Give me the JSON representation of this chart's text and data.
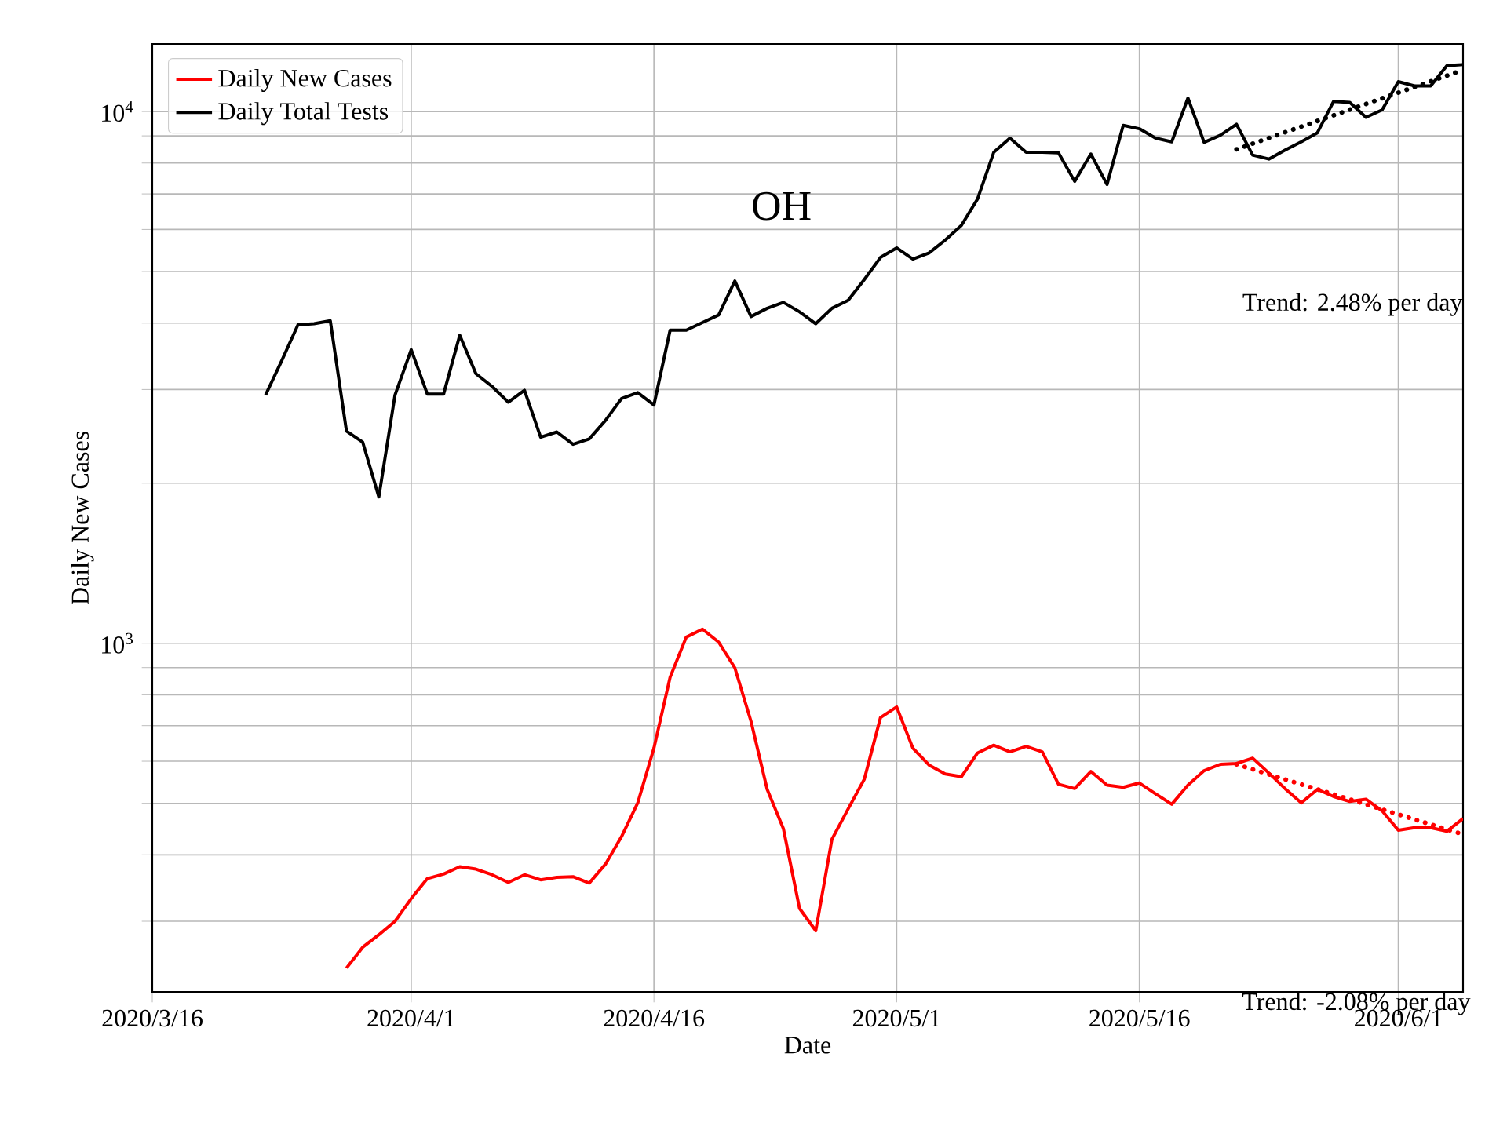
{
  "chart_data": {
    "type": "line",
    "title": "OH",
    "xlabel": "Date",
    "ylabel": "Daily New Cases",
    "log": "y",
    "grid": true,
    "legend": "top left",
    "xlim": [
      "2020-03-16",
      "2020-06-05"
    ],
    "xticks": [
      {
        "value": "2020-03-16",
        "label": "2020/3/16"
      },
      {
        "value": "2020-04-01",
        "label": "2020/4/1"
      },
      {
        "value": "2020-04-16",
        "label": "2020/4/16"
      },
      {
        "value": "2020-05-01",
        "label": "2020/5/1"
      },
      {
        "value": "2020-05-16",
        "label": "2020/5/16"
      },
      {
        "value": "2020-06-01",
        "label": "2020/6/1"
      }
    ],
    "ylim": [
      221,
      13400
    ],
    "yticks": [
      {
        "value": 300,
        "label": null
      },
      {
        "value": 400,
        "label": null
      },
      {
        "value": 500,
        "label": null
      },
      {
        "value": 600,
        "label": null
      },
      {
        "value": 700,
        "label": null
      },
      {
        "value": 800,
        "label": null
      },
      {
        "value": 900,
        "label": null
      },
      {
        "value": 1000,
        "label": "10$^{3}$"
      },
      {
        "value": 2000,
        "label": null
      },
      {
        "value": 3000,
        "label": null
      },
      {
        "value": 4000,
        "label": null
      },
      {
        "value": 5000,
        "label": null
      },
      {
        "value": 6000,
        "label": null
      },
      {
        "value": 7000,
        "label": null
      },
      {
        "value": 8000,
        "label": null
      },
      {
        "value": 9000,
        "label": null
      },
      {
        "value": 10000,
        "label": "10$^{4}$"
      }
    ],
    "x": [
      "2020-03-23",
      "2020-03-24",
      "2020-03-25",
      "2020-03-26",
      "2020-03-27",
      "2020-03-28",
      "2020-03-29",
      "2020-03-30",
      "2020-03-31",
      "2020-04-01",
      "2020-04-02",
      "2020-04-03",
      "2020-04-04",
      "2020-04-05",
      "2020-04-06",
      "2020-04-07",
      "2020-04-08",
      "2020-04-09",
      "2020-04-10",
      "2020-04-11",
      "2020-04-12",
      "2020-04-13",
      "2020-04-14",
      "2020-04-15",
      "2020-04-16",
      "2020-04-17",
      "2020-04-18",
      "2020-04-19",
      "2020-04-20",
      "2020-04-21",
      "2020-04-22",
      "2020-04-23",
      "2020-04-24",
      "2020-04-25",
      "2020-04-26",
      "2020-04-27",
      "2020-04-28",
      "2020-04-29",
      "2020-04-30",
      "2020-05-01",
      "2020-05-02",
      "2020-05-03",
      "2020-05-04",
      "2020-05-05",
      "2020-05-06",
      "2020-05-07",
      "2020-05-08",
      "2020-05-09",
      "2020-05-10",
      "2020-05-11",
      "2020-05-12",
      "2020-05-13",
      "2020-05-14",
      "2020-05-15",
      "2020-05-16",
      "2020-05-17",
      "2020-05-18",
      "2020-05-19",
      "2020-05-20",
      "2020-05-21",
      "2020-05-22",
      "2020-05-23",
      "2020-05-24",
      "2020-05-25",
      "2020-05-26",
      "2020-05-27",
      "2020-05-28",
      "2020-05-29",
      "2020-05-30",
      "2020-05-31",
      "2020-06-01",
      "2020-06-02",
      "2020-06-03",
      "2020-06-04",
      "2020-06-05"
    ],
    "series": [
      {
        "name": "Daily New Cases",
        "color": "#ff0000",
        "values": [
          null,
          null,
          null,
          null,
          null,
          245,
          268,
          283,
          300,
          331,
          361,
          368,
          380,
          376,
          367,
          355,
          367,
          359,
          363,
          364,
          354,
          384,
          433,
          501,
          635,
          863,
          1027,
          1063,
          1005,
          899,
          713,
          531,
          448,
          317,
          288,
          428,
          488,
          555,
          725,
          759,
          635,
          590,
          568,
          561,
          622,
          643,
          625,
          640,
          625,
          543,
          533,
          574,
          541,
          536,
          546,
          521,
          498,
          541,
          576,
          592,
          594,
          608,
          570,
          533,
          501,
          531,
          515,
          504,
          509,
          484,
          445,
          450,
          450,
          443,
          468
        ]
      },
      {
        "name": "Daily Total Tests",
        "color": "#000000",
        "values": [
          2930,
          3400,
          3970,
          3990,
          4040,
          2506,
          2390,
          1884,
          2930,
          3565,
          2940,
          2940,
          3795,
          3213,
          3040,
          2840,
          2990,
          2440,
          2496,
          2367,
          2422,
          2623,
          2886,
          2960,
          2806,
          3880,
          3880,
          4010,
          4143,
          4800,
          4115,
          4265,
          4375,
          4200,
          3990,
          4265,
          4415,
          4830,
          5315,
          5540,
          5280,
          5420,
          5730,
          6105,
          6850,
          8380,
          8910,
          8380,
          8380,
          8360,
          7390,
          8320,
          7290,
          9420,
          9280,
          8910,
          8770,
          10600,
          8750,
          9020,
          9460,
          8280,
          8140,
          8460,
          8770,
          9120,
          10450,
          10400,
          9750,
          10070,
          11380,
          11170,
          11170,
          12190,
          12250
        ]
      },
      {
        "type": "line",
        "line_style": "dotted",
        "color": "#ff0000",
        "x": [
          "2020-05-22",
          "2020-06-05"
        ],
        "values": [
          592,
          437
        ]
      },
      {
        "type": "line",
        "line_style": "dotted",
        "color": "#000000",
        "x": [
          "2020-05-22",
          "2020-06-05"
        ],
        "values": [
          8490,
          11970
        ]
      }
    ],
    "annotations": [
      "Trend: 2.48% per day",
      "Trend: -2.08% per day"
    ]
  }
}
